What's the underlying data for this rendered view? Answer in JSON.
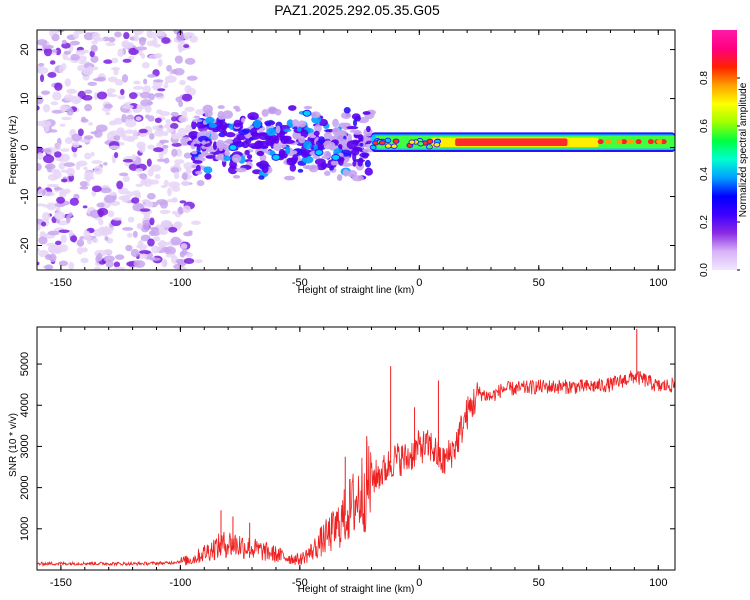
{
  "title": "PAZ1.2025.292.05.35.G05",
  "colors": {
    "snr_line": "#ee2020",
    "frame": "#000000",
    "noise_light": "#e6d5f7",
    "noise_mid": "#c8a6ee",
    "noise_dark": "#7a1fe0"
  },
  "chart_data": [
    {
      "type": "heatmap",
      "title": "PAZ1.2025.292.05.35.G05",
      "xlabel": "Height of straight line (km)",
      "ylabel": "Frequency (Hz)",
      "xlim": [
        -160,
        107
      ],
      "ylim": [
        -25,
        24
      ],
      "xticks": [
        -150,
        -100,
        -50,
        0,
        50,
        100
      ],
      "yticks": [
        -20,
        -10,
        0,
        10,
        20
      ],
      "colorbar": {
        "label": "Normalized spectral amplitude",
        "range": [
          0,
          1
        ],
        "ticks": [
          "0.0",
          "0.2",
          "0.4",
          "0.6",
          "0.8"
        ],
        "stops": [
          "#f0e6ff",
          "#d8b4f8",
          "#8a2be2",
          "#3d00ff",
          "#0000ff",
          "#00a0ff",
          "#00ffd0",
          "#00ff40",
          "#a0ff00",
          "#ffff00",
          "#ffa000",
          "#ff2000",
          "#ff0080",
          "#ff1aa8"
        ]
      },
      "regions": [
        {
          "name": "noise",
          "x": [
            -160,
            -95
          ],
          "freq": [
            -25,
            24
          ],
          "amplitude": 0.05
        },
        {
          "name": "transition",
          "x": [
            -95,
            -20
          ],
          "freq": [
            -7,
            9
          ],
          "amplitude": 0.15
        },
        {
          "name": "signal",
          "x": [
            -20,
            107
          ],
          "freq": [
            0,
            2
          ],
          "amplitude": 0.95
        }
      ]
    },
    {
      "type": "line",
      "xlabel": "Height of straight line (km)",
      "ylabel": "SNR (10 * v/v)",
      "xlim": [
        -160,
        107
      ],
      "ylim": [
        0,
        5900
      ],
      "xticks": [
        -150,
        -100,
        -50,
        0,
        50,
        100
      ],
      "yticks": [
        1000,
        2000,
        3000,
        4000,
        5000
      ],
      "series": [
        {
          "name": "SNR",
          "x": [
            -160,
            -140,
            -120,
            -105,
            -95,
            -90,
            -85,
            -80,
            -75,
            -70,
            -65,
            -60,
            -55,
            -50,
            -45,
            -40,
            -35,
            -30,
            -25,
            -20,
            -15,
            -12,
            -10,
            -5,
            0,
            5,
            10,
            15,
            20,
            25,
            30,
            35,
            40,
            50,
            60,
            70,
            80,
            90,
            95,
            100,
            107
          ],
          "y": [
            150,
            160,
            150,
            170,
            250,
            420,
            550,
            650,
            600,
            520,
            450,
            380,
            300,
            250,
            450,
            750,
            1000,
            1400,
            1800,
            2200,
            2400,
            2600,
            2700,
            2700,
            3000,
            3000,
            2600,
            3000,
            3800,
            4300,
            4200,
            4400,
            4400,
            4450,
            4450,
            4450,
            4500,
            4700,
            4600,
            4450,
            4500
          ],
          "spikes": [
            {
              "x": -83,
              "y": 1450
            },
            {
              "x": -78,
              "y": 1300
            },
            {
              "x": -71,
              "y": 1150
            },
            {
              "x": -31,
              "y": 2750
            },
            {
              "x": -22,
              "y": 3250
            },
            {
              "x": -12,
              "y": 4950
            },
            {
              "x": -2,
              "y": 3950
            },
            {
              "x": 8,
              "y": 4600
            },
            {
              "x": 91,
              "y": 5850
            }
          ]
        }
      ]
    }
  ]
}
